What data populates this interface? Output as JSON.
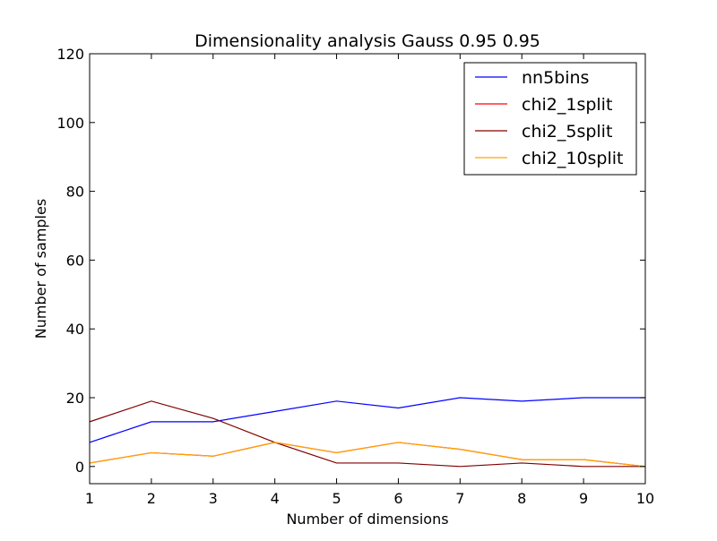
{
  "chart_data": {
    "type": "line",
    "title": "Dimensionality analysis Gauss 0.95 0.95",
    "xlabel": "Number of dimensions",
    "ylabel": "Number of samples",
    "xlim": [
      1,
      10
    ],
    "ylim": [
      -5,
      120
    ],
    "x_ticks": [
      "1",
      "2",
      "3",
      "4",
      "5",
      "6",
      "7",
      "8",
      "9",
      "10"
    ],
    "y_ticks": [
      "0",
      "20",
      "40",
      "60",
      "80",
      "100",
      "120"
    ],
    "grid": false,
    "legend_position": "top-right",
    "x": [
      1,
      2,
      3,
      4,
      5,
      6,
      7,
      8,
      9,
      10
    ],
    "series": [
      {
        "name": "nn5bins",
        "color": "#0000ff",
        "values": [
          7,
          13,
          13,
          16,
          19,
          17,
          20,
          19,
          20,
          20
        ]
      },
      {
        "name": "chi2_1split",
        "color": "#ff0000",
        "values": [
          1,
          4,
          3,
          7,
          4,
          7,
          5,
          2,
          2,
          0
        ]
      },
      {
        "name": "chi2_5split",
        "color": "#800000",
        "values": [
          13,
          19,
          14,
          7,
          1,
          1,
          0,
          1,
          0,
          0
        ]
      },
      {
        "name": "chi2_10split",
        "color": "#ffa500",
        "values": [
          1,
          4,
          3,
          7,
          4,
          7,
          5,
          2,
          2,
          0
        ]
      }
    ]
  }
}
